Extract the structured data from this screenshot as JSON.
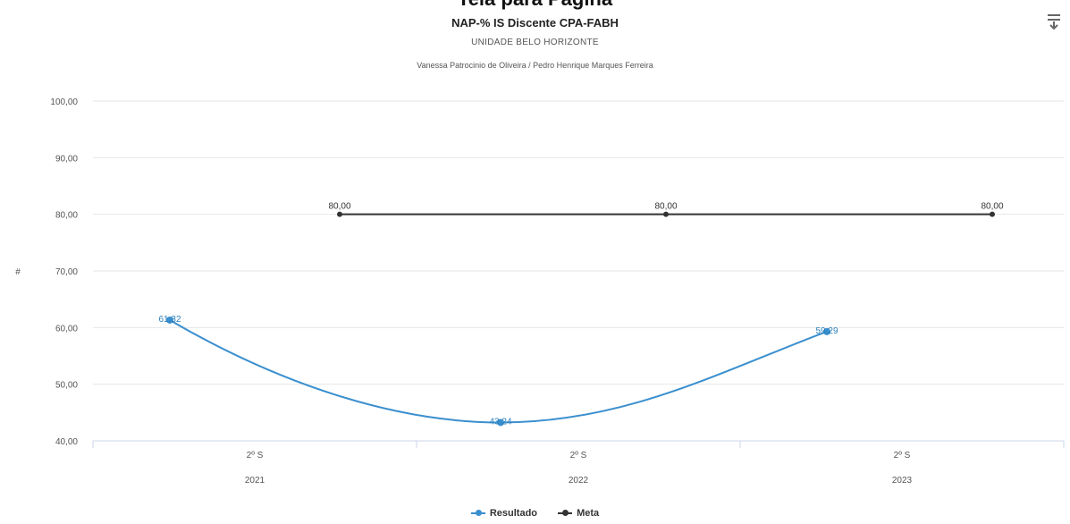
{
  "page_title": "Tela para Pagina",
  "chart_data": {
    "type": "line",
    "title": "NAP-% IS Discente CPA-FABH",
    "subtitle": "UNIDADE BELO HORIZONTE",
    "subtitle2": "Vanessa Patrocinio de Oliveira / Pedro Henrique Marques Ferreira",
    "ylabel": "#",
    "xlabel": "",
    "ylim": [
      40,
      100
    ],
    "yticks": [
      "100,00",
      "90,00",
      "80,00",
      "70,00",
      "60,00",
      "50,00",
      "40,00"
    ],
    "categories": [
      {
        "line1": "2º S",
        "line2": "2021"
      },
      {
        "line1": "2º S",
        "line2": "2022"
      },
      {
        "line1": "2º S",
        "line2": "2023"
      }
    ],
    "series": [
      {
        "name": "Resultado",
        "color": "#3a8fcf",
        "values": [
          61.32,
          43.24,
          59.29
        ],
        "labels": [
          "61,32",
          "43,24",
          "59,29"
        ]
      },
      {
        "name": "Meta",
        "color": "#333333",
        "values": [
          80,
          80,
          80
        ],
        "labels": [
          "80,00",
          "80,00",
          "80,00"
        ]
      }
    ],
    "legend": "bottom-center",
    "grid": true
  },
  "menu_icon": "hamburger-download-icon"
}
